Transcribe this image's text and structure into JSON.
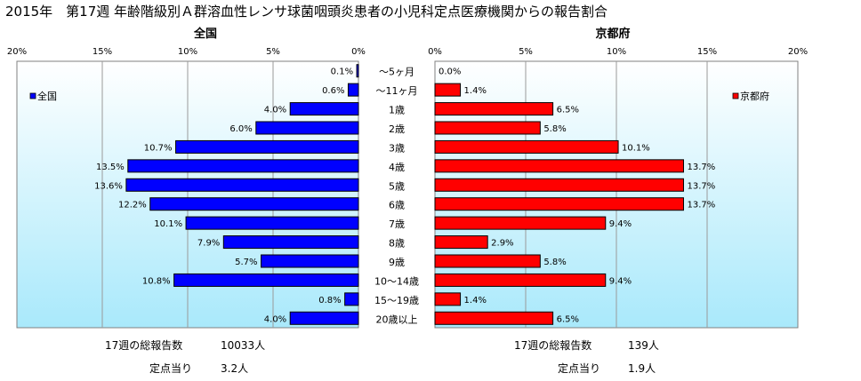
{
  "title": "2015年　第17週 年齢階級別Ａ群溶血性レンサ球菌咽頭炎患者の小児科定点医療機関からの報告割合",
  "chart_data": [
    {
      "type": "bar",
      "orientation": "horizontal",
      "title": "全国",
      "categories": [
        "～5ヶ月",
        "～11ヶ月",
        "1歳",
        "2歳",
        "3歳",
        "4歳",
        "5歳",
        "6歳",
        "7歳",
        "8歳",
        "9歳",
        "10～14歳",
        "15～19歳",
        "20歳以上"
      ],
      "series": [
        {
          "name": "全国",
          "color": "#0000ff",
          "values": [
            0.1,
            0.6,
            4.0,
            6.0,
            10.7,
            13.5,
            13.6,
            12.2,
            10.1,
            7.9,
            5.7,
            10.8,
            0.8,
            4.0
          ],
          "labels": [
            "0.1%",
            "0.6%",
            "4.0%",
            "6.0%",
            "10.7%",
            "13.5%",
            "13.6%",
            "12.2%",
            "10.1%",
            "7.9%",
            "5.7%",
            "10.8%",
            "0.8%",
            "4.0%"
          ]
        }
      ],
      "xlim": [
        0,
        20
      ],
      "x_direction": "reversed",
      "ticks": [
        "20%",
        "15%",
        "10%",
        "5%",
        "0%"
      ],
      "legend": "top-left",
      "grid": true
    },
    {
      "type": "bar",
      "orientation": "horizontal",
      "title": "京都府",
      "categories": [
        "～5ヶ月",
        "～11ヶ月",
        "1歳",
        "2歳",
        "3歳",
        "4歳",
        "5歳",
        "6歳",
        "7歳",
        "8歳",
        "9歳",
        "10～14歳",
        "15～19歳",
        "20歳以上"
      ],
      "series": [
        {
          "name": "京都府",
          "color": "#ff0000",
          "values": [
            0.0,
            1.4,
            6.5,
            5.8,
            10.1,
            13.7,
            13.7,
            13.7,
            9.4,
            2.9,
            5.8,
            9.4,
            1.4,
            6.5
          ],
          "labels": [
            "0.0%",
            "1.4%",
            "6.5%",
            "5.8%",
            "10.1%",
            "13.7%",
            "13.7%",
            "13.7%",
            "9.4%",
            "2.9%",
            "5.8%",
            "9.4%",
            "1.4%",
            "6.5%"
          ]
        }
      ],
      "xlim": [
        0,
        20
      ],
      "ticks": [
        "0%",
        "5%",
        "10%",
        "15%",
        "20%"
      ],
      "legend": "top-right",
      "grid": true
    }
  ],
  "footer": {
    "national": {
      "total_label": "17週の総報告数",
      "total_value": "10033人",
      "per_point_label": "定点当り",
      "per_point_value": "3.2人"
    },
    "kyoto": {
      "total_label": "17週の総報告数",
      "total_value": "139人",
      "per_point_label": "定点当り",
      "per_point_value": "1.9人"
    }
  }
}
